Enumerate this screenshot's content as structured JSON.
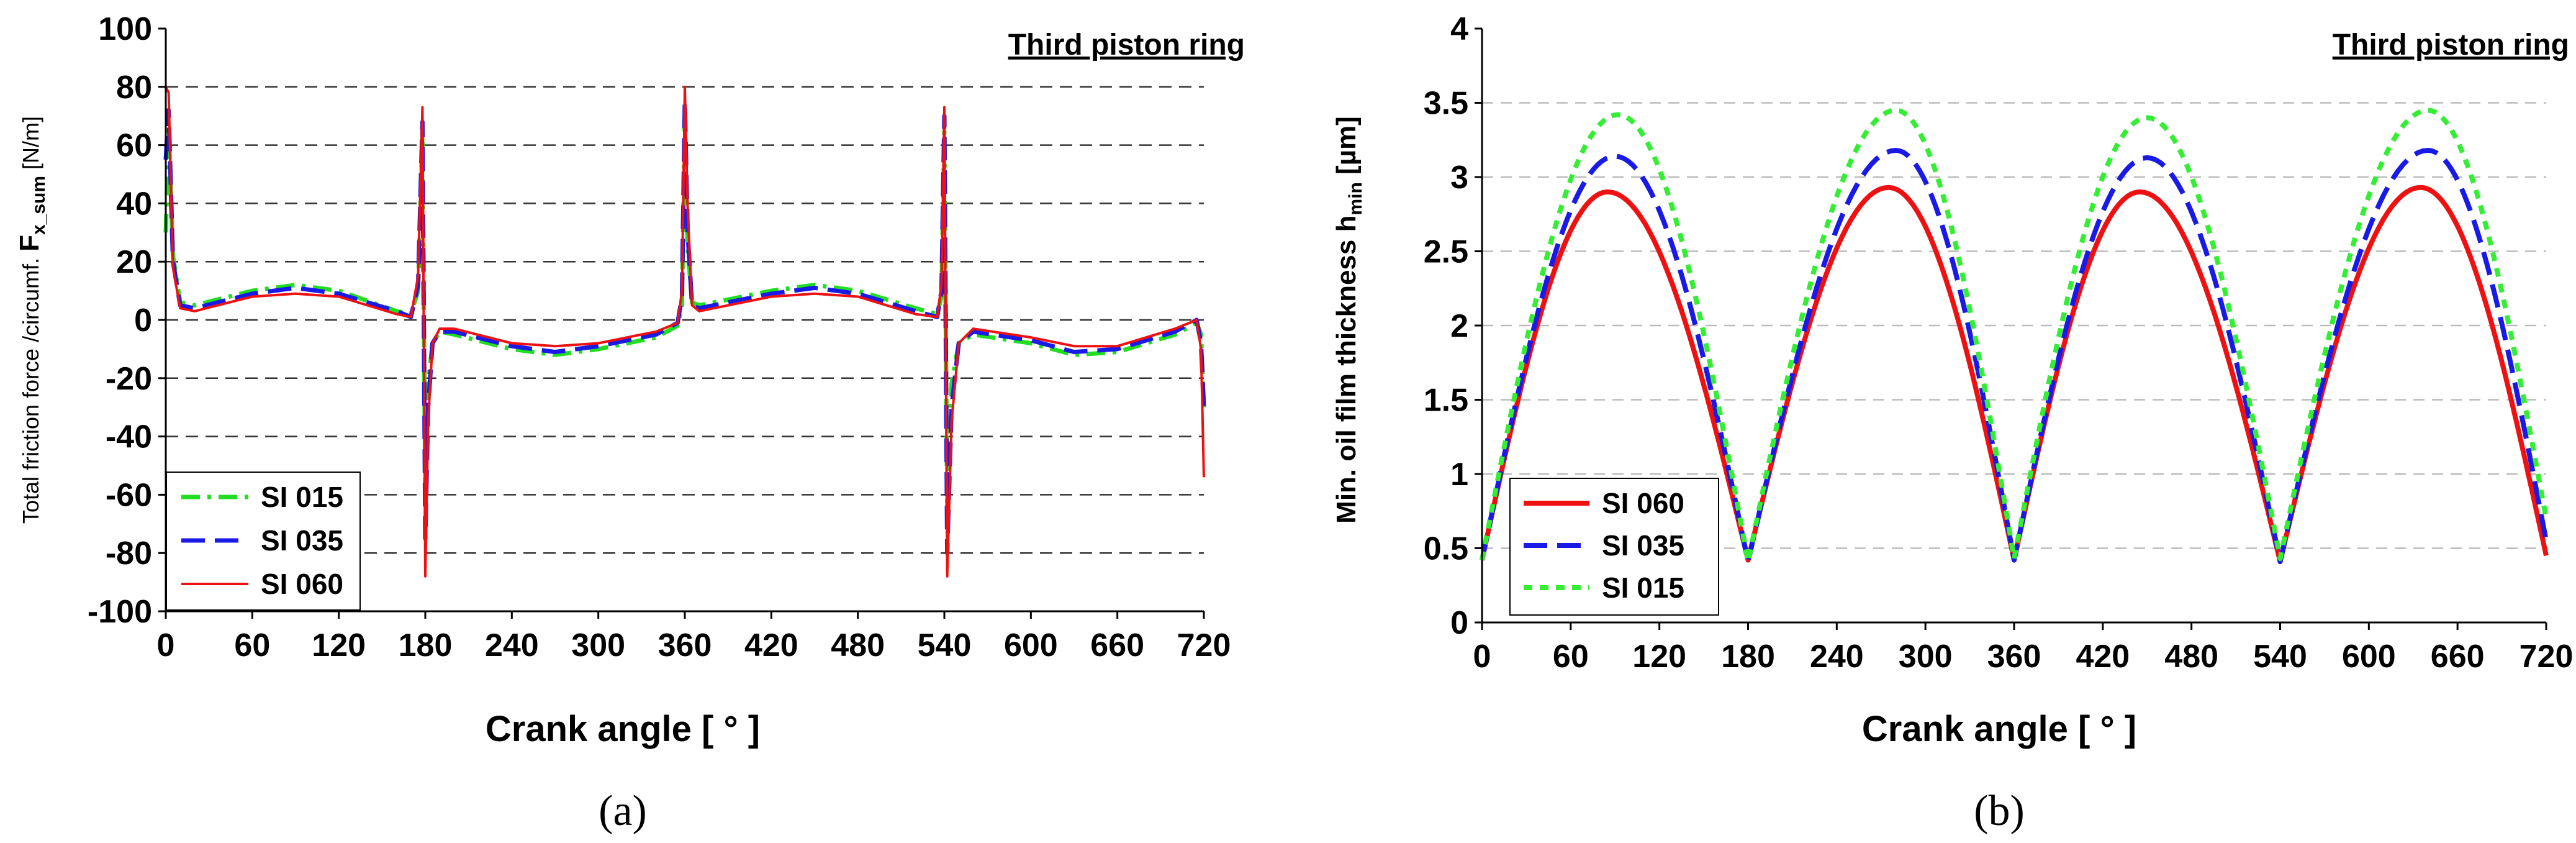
{
  "chart_data": [
    {
      "type": "line",
      "panel_label": "(a)",
      "title": "Third piston ring",
      "xlabel": "Crank angle [ ° ]",
      "ylabel_prefix": "Total friction force /circumf. ",
      "ylabel_symbol": "F",
      "ylabel_subscript": "x_sum",
      "ylabel_unit": " [N/m]",
      "xlim": [
        0,
        720
      ],
      "ylim": [
        -100,
        100
      ],
      "xticks": [
        0,
        60,
        120,
        180,
        240,
        300,
        360,
        420,
        480,
        540,
        600,
        660,
        720
      ],
      "yticks": [
        -100,
        -80,
        -60,
        -40,
        -20,
        0,
        20,
        40,
        60,
        80,
        100
      ],
      "grid": "horizontal dashed",
      "legend_position": "bottom-left",
      "series": [
        {
          "name": "SI 015",
          "color": "#22dd22",
          "style": "dash-dot",
          "x": [
            0,
            2,
            5,
            10,
            20,
            60,
            90,
            120,
            160,
            170,
            175,
            178,
            180,
            182,
            185,
            190,
            200,
            240,
            270,
            300,
            340,
            355,
            358,
            360,
            362,
            365,
            370,
            380,
            420,
            450,
            480,
            520,
            535,
            538,
            540,
            542,
            545,
            550,
            560,
            600,
            630,
            660,
            700,
            715,
            718,
            720
          ],
          "y": [
            30,
            65,
            22,
            6,
            5,
            10,
            12,
            10,
            3,
            2,
            10,
            65,
            -60,
            -22,
            -8,
            -4,
            -5,
            -10,
            -12,
            -10,
            -6,
            -2,
            5,
            70,
            25,
            6,
            5,
            6,
            10,
            12,
            10,
            4,
            2,
            8,
            65,
            -65,
            -22,
            -8,
            -5,
            -8,
            -12,
            -11,
            -5,
            -1,
            -5,
            -30
          ]
        },
        {
          "name": "SI 035",
          "color": "#1a1ae6",
          "style": "dashed",
          "x": [
            0,
            2,
            5,
            10,
            20,
            60,
            90,
            120,
            160,
            170,
            175,
            178,
            180,
            182,
            185,
            190,
            200,
            240,
            270,
            300,
            340,
            355,
            358,
            360,
            362,
            365,
            370,
            380,
            420,
            450,
            480,
            520,
            535,
            538,
            540,
            542,
            545,
            550,
            560,
            600,
            630,
            660,
            700,
            715,
            718,
            720
          ],
          "y": [
            55,
            72,
            20,
            5,
            4,
            9,
            11,
            9,
            3,
            1,
            12,
            68,
            -75,
            -30,
            -8,
            -4,
            -4,
            -9,
            -11,
            -9,
            -5,
            -1,
            8,
            75,
            30,
            5,
            4,
            5,
            9,
            11,
            9,
            3,
            1,
            10,
            70,
            -80,
            -30,
            -8,
            -4,
            -7,
            -11,
            -10,
            -4,
            0,
            -8,
            -30
          ]
        },
        {
          "name": "SI 060",
          "color": "#ee1111",
          "style": "solid",
          "x": [
            0,
            2,
            5,
            10,
            20,
            60,
            90,
            120,
            160,
            170,
            175,
            178,
            180,
            182,
            185,
            190,
            200,
            240,
            270,
            300,
            340,
            355,
            358,
            360,
            362,
            365,
            370,
            380,
            420,
            450,
            480,
            520,
            535,
            538,
            540,
            542,
            545,
            550,
            560,
            600,
            630,
            660,
            700,
            715,
            718,
            720
          ],
          "y": [
            80,
            78,
            18,
            4,
            3,
            8,
            9,
            8,
            2,
            1,
            15,
            73,
            -88,
            -35,
            -8,
            -3,
            -3,
            -8,
            -9,
            -8,
            -4,
            -1,
            10,
            80,
            38,
            5,
            3,
            4,
            8,
            9,
            8,
            2,
            1,
            12,
            73,
            -88,
            -35,
            -8,
            -3,
            -6,
            -9,
            -9,
            -3,
            0,
            -10,
            -54
          ]
        }
      ]
    },
    {
      "type": "line",
      "panel_label": "(b)",
      "title": "Third piston ring",
      "xlabel": "Crank angle [ ° ]",
      "ylabel_prefix": "Min. oil film thickness h",
      "ylabel_subscript": "min",
      "ylabel_unit": " [µm]",
      "xlim": [
        0,
        720
      ],
      "ylim": [
        0,
        4
      ],
      "xticks": [
        0,
        60,
        120,
        180,
        240,
        300,
        360,
        420,
        480,
        540,
        600,
        660,
        720
      ],
      "yticks": [
        0,
        0.5,
        1,
        1.5,
        2,
        2.5,
        3,
        3.5,
        4
      ],
      "grid": "horizontal dashed light",
      "legend_position": "bottom-left",
      "series": [
        {
          "name": "SI 060",
          "color": "#ee1111",
          "style": "solid",
          "peaks": [
            [
              85,
              2.9
            ],
            [
              275,
              2.93
            ],
            [
              445,
              2.9
            ],
            [
              635,
              2.93
            ]
          ],
          "troughs": [
            [
              0,
              0.42
            ],
            [
              180,
              0.42
            ],
            [
              360,
              0.42
            ],
            [
              540,
              0.41
            ],
            [
              720,
              0.45
            ]
          ]
        },
        {
          "name": "SI 035",
          "color": "#1a1ae6",
          "style": "dashed",
          "peaks": [
            [
              90,
              3.14
            ],
            [
              280,
              3.18
            ],
            [
              450,
              3.13
            ],
            [
              640,
              3.18
            ]
          ],
          "troughs": [
            [
              0,
              0.42
            ],
            [
              180,
              0.41
            ],
            [
              360,
              0.42
            ],
            [
              540,
              0.41
            ],
            [
              720,
              0.55
            ]
          ]
        },
        {
          "name": "SI 015",
          "color": "#33ee33",
          "style": "dotted",
          "peaks": [
            [
              92,
              3.42
            ],
            [
              280,
              3.45
            ],
            [
              450,
              3.4
            ],
            [
              640,
              3.45
            ]
          ],
          "troughs": [
            [
              0,
              0.42
            ],
            [
              180,
              0.41
            ],
            [
              360,
              0.43
            ],
            [
              540,
              0.43
            ],
            [
              720,
              0.7
            ]
          ]
        }
      ]
    }
  ]
}
